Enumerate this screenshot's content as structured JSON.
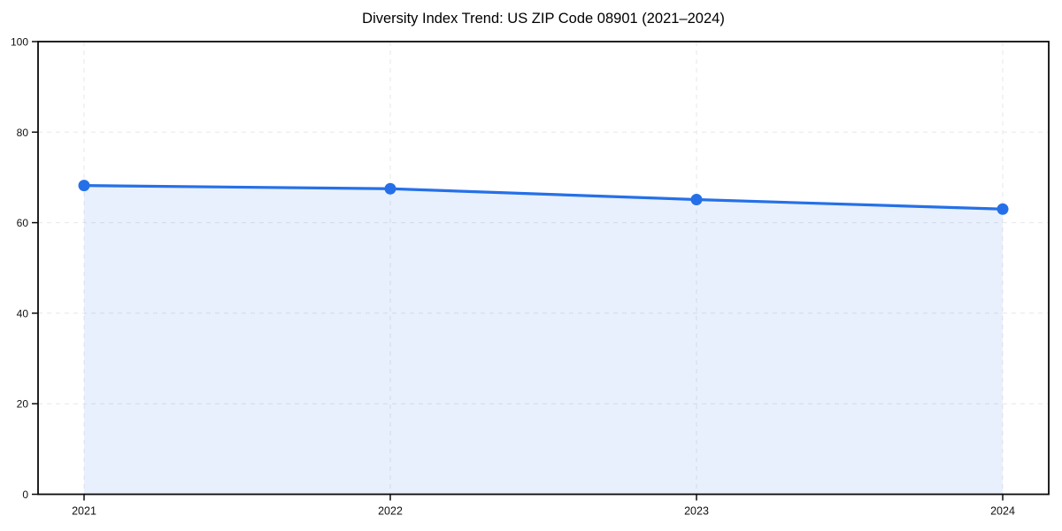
{
  "page": {
    "background": "#ffffff"
  },
  "chart_data": {
    "type": "area",
    "title": "Diversity Index Trend: US ZIP Code 08901 (2021–2024)",
    "series_name": "Diversity Index",
    "x": [
      2021,
      2022,
      2023,
      2024
    ],
    "categories": [
      "2021",
      "2022",
      "2023",
      "2024"
    ],
    "values": [
      68.2,
      67.5,
      65.1,
      63.0
    ],
    "xlabel": "",
    "ylabel": "",
    "ylim": [
      0,
      100
    ],
    "yticks": [
      0,
      20,
      40,
      60,
      80,
      100
    ],
    "grid": "dashed",
    "legend": "none",
    "line_color": "#2570e8",
    "marker_color": "#2570e8",
    "fill_color": "rgba(37, 112, 232, 0.10)",
    "grid_color": "#e7e7e7",
    "spine_color": "#0a0a0a",
    "tick_label_color": "#111111"
  }
}
